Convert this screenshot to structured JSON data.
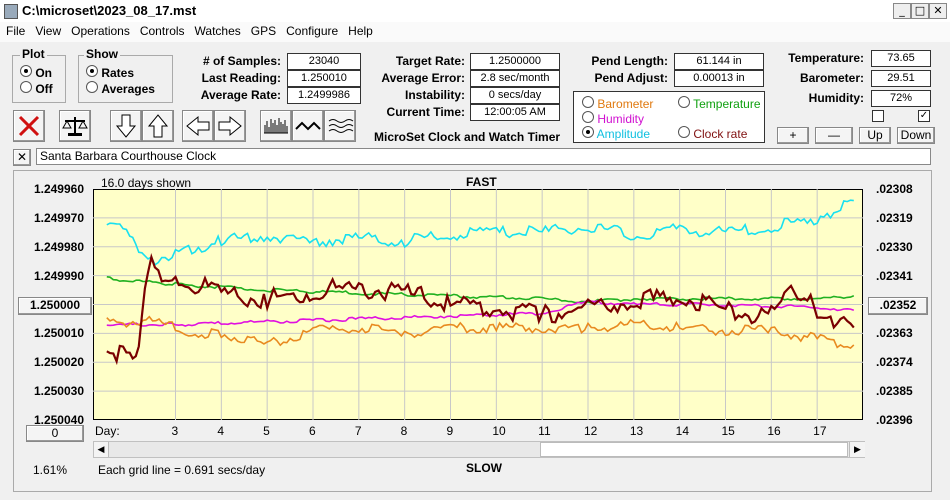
{
  "window": {
    "title": "C:\\microset\\2023_08_17.mst"
  },
  "menu": [
    "File",
    "View",
    "Operations",
    "Controls",
    "Watches",
    "GPS",
    "Configure",
    "Help"
  ],
  "plot_group": {
    "title": "Plot",
    "options": [
      "On",
      "Off"
    ],
    "selected": "On"
  },
  "show_group": {
    "title": "Show",
    "options": [
      "Rates",
      "Averages"
    ],
    "selected": "Rates"
  },
  "stats": {
    "samples_label": "# of Samples:",
    "samples": "23040",
    "last_reading_label": "Last Reading:",
    "last_reading": "1.250010",
    "average_rate_label": "Average Rate:",
    "average_rate": "1.2499986",
    "target_rate_label": "Target Rate:",
    "target_rate": "1.2500000",
    "average_error_label": "Average Error:",
    "average_error": "2.8 sec/month",
    "instability_label": "Instability:",
    "instability": "0 secs/day",
    "current_time_label": "Current Time:",
    "current_time": "12:00:05 AM",
    "pend_length_label": "Pend Length:",
    "pend_length": "61.144 in",
    "pend_adjust_label": "Pend Adjust:",
    "pend_adjust": "0.00013 in",
    "temperature_label": "Temperature:",
    "temperature": "73.65",
    "barometer_label": "Barometer:",
    "barometer": "29.51",
    "humidity_label": "Humidity:",
    "humidity": "72%"
  },
  "app_name": "MicroSet Clock and Watch Timer",
  "series_select": {
    "options": [
      {
        "label": "Barometer",
        "color": "#e07a10",
        "selected": false
      },
      {
        "label": "Temperature",
        "color": "#10a010",
        "selected": false
      },
      {
        "label": "Humidity",
        "color": "#d010d0",
        "selected": false
      },
      {
        "label": "Amplitude",
        "color": "#10c0e0",
        "selected": true
      },
      {
        "label": "Clock rate",
        "color": "#801010",
        "selected": false
      }
    ]
  },
  "adjust_buttons": {
    "plus": "+",
    "minus": "—",
    "up": "Up",
    "down": "Down"
  },
  "checkboxes": {
    "left_checked": false,
    "right_checked": true
  },
  "clock_name": "Santa Barbara Courthouse Clock",
  "chart_header": {
    "days_shown": "16.0 days shown",
    "fast": "FAST",
    "slow": "SLOW",
    "grid_note": "Each grid line = 0.691 secs/day",
    "percent": "1.61%",
    "day_label": "Day:"
  },
  "chart_buttons": {
    "center_value": "1.250000",
    "right_value": ".02352",
    "zero": "0"
  },
  "chart_data": {
    "type": "line",
    "left_axis_ticks": [
      "1.249960",
      "1.249970",
      "1.249980",
      "1.249990",
      "1.250000",
      "1.250010",
      "1.250020",
      "1.250030",
      "1.250040"
    ],
    "right_axis_ticks": [
      ".02308",
      ".02319",
      ".02330",
      ".02341",
      ".02352",
      ".02363",
      ".02374",
      ".02385",
      ".02396"
    ],
    "x_ticks": [
      "3",
      "4",
      "5",
      "6",
      "7",
      "8",
      "9",
      "10",
      "11",
      "12",
      "13",
      "14",
      "15",
      "16",
      "17"
    ],
    "plot_bg": "#ffffc8",
    "grid": true,
    "series": [
      {
        "color": "#18e0f0",
        "values": [
          [
            1.5,
            1.249972
          ],
          [
            2,
            1.249975
          ],
          [
            2.4,
            1.249985
          ],
          [
            3,
            1.249982
          ],
          [
            4,
            1.249978
          ],
          [
            5,
            1.249976
          ],
          [
            6,
            1.249978
          ],
          [
            7,
            1.249977
          ],
          [
            8,
            1.249978
          ],
          [
            9,
            1.249976
          ],
          [
            10,
            1.249975
          ],
          [
            11,
            1.249975
          ],
          [
            12,
            1.249973
          ],
          [
            13,
            1.249976
          ],
          [
            14,
            1.249974
          ],
          [
            15,
            1.249975
          ],
          [
            16,
            1.249973
          ],
          [
            17,
            1.24997
          ],
          [
            17.8,
            1.249964
          ]
        ]
      },
      {
        "color": "#20b020",
        "values": [
          [
            1.5,
            1.249991
          ],
          [
            3,
            1.249993
          ],
          [
            5,
            1.249995
          ],
          [
            7,
            1.249996
          ],
          [
            9,
            1.249997
          ],
          [
            11,
            1.249998
          ],
          [
            12,
            1.249999
          ],
          [
            13,
            1.249998
          ],
          [
            15,
            1.249998
          ],
          [
            17,
            1.249998
          ],
          [
            17.8,
            1.249997
          ]
        ]
      },
      {
        "color": "#e010e0",
        "values": [
          [
            1.5,
            1.250007
          ],
          [
            3,
            1.250007
          ],
          [
            5,
            1.250006
          ],
          [
            7,
            1.250005
          ],
          [
            9,
            1.250004
          ],
          [
            11,
            1.250003
          ],
          [
            12,
            1.249999
          ],
          [
            13,
            1.25
          ],
          [
            15,
            1.25
          ],
          [
            17,
            1.250001
          ],
          [
            17.8,
            1.250002
          ]
        ]
      },
      {
        "color": "#e88a20",
        "values": [
          [
            1.5,
            1.250006
          ],
          [
            2.5,
            1.250006
          ],
          [
            3.5,
            1.25001
          ],
          [
            4,
            1.25001
          ],
          [
            5,
            1.250014
          ],
          [
            6,
            1.250009
          ],
          [
            7,
            1.250008
          ],
          [
            8,
            1.25001
          ],
          [
            9,
            1.250008
          ],
          [
            10,
            1.250008
          ],
          [
            11,
            1.250008
          ],
          [
            12,
            1.250008
          ],
          [
            13,
            1.250007
          ],
          [
            14,
            1.250008
          ],
          [
            15,
            1.250009
          ],
          [
            16,
            1.250009
          ],
          [
            17,
            1.250012
          ],
          [
            17.8,
            1.250014
          ]
        ]
      },
      {
        "color": "#7a0000",
        "values": [
          [
            1.5,
            1.250016
          ],
          [
            2,
            1.250018
          ],
          [
            2.2,
            1.250015
          ],
          [
            2.4,
            1.249986
          ],
          [
            2.7,
            1.249989
          ],
          [
            3,
            1.249991
          ],
          [
            4,
            1.249996
          ],
          [
            5,
            1.249998
          ],
          [
            6,
            1.249995
          ],
          [
            7,
            1.249994
          ],
          [
            8,
            1.249996
          ],
          [
            9,
            1.249999
          ],
          [
            10,
            1.250001
          ],
          [
            11,
            1.250004
          ],
          [
            12,
            1.250001
          ],
          [
            13,
            1.249999
          ],
          [
            14,
            1.249997
          ],
          [
            15,
            1.250002
          ],
          [
            16,
            1.250004
          ],
          [
            16.5,
            1.249995
          ],
          [
            17,
            1.250002
          ],
          [
            17.8,
            1.250008
          ]
        ]
      }
    ]
  }
}
